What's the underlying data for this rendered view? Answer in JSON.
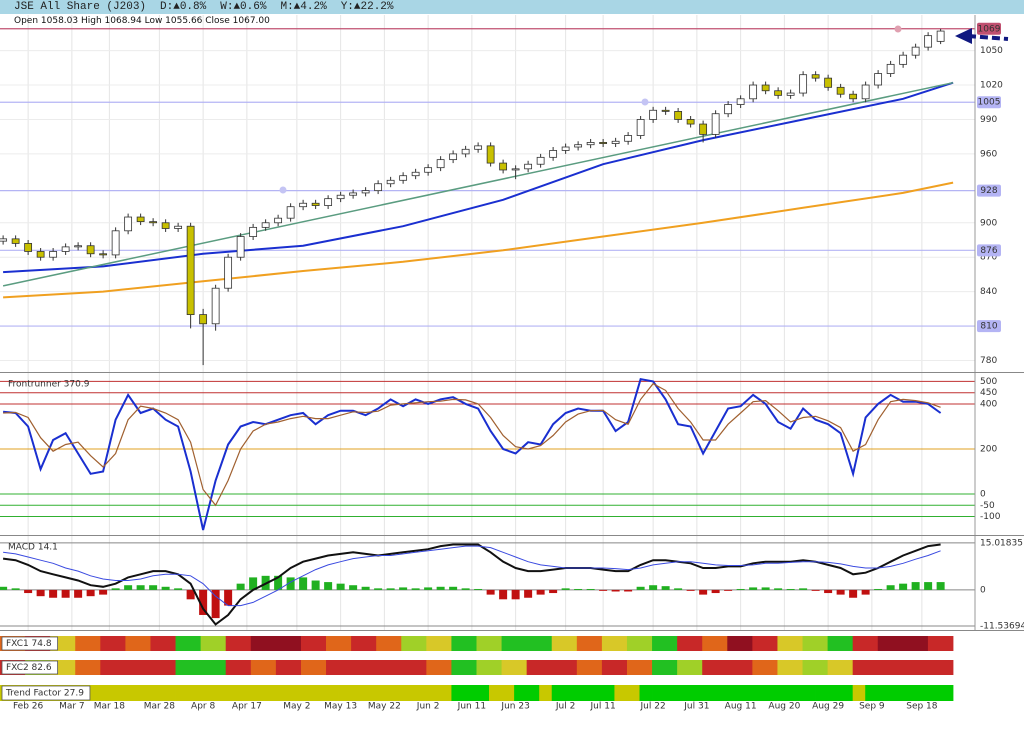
{
  "header": {
    "title": "JSE All Share (J203)",
    "changes": [
      "D:▲0.8%",
      "W:▲0.6%",
      "M:▲4.2%",
      "Y:▲22.2%"
    ],
    "ohlc": "Open 1058.03 High 1068.94 Low 1055.66 Close 1067.00"
  },
  "chart_data": [
    {
      "type": "candlestick",
      "xlim": [
        -4.5,
        151.5
      ],
      "xticks": [
        {
          "value": 0,
          "label": "Feb 26"
        },
        {
          "value": 7,
          "label": "Mar 7"
        },
        {
          "value": 13,
          "label": "Mar 18"
        },
        {
          "value": 21,
          "label": "Mar 28"
        },
        {
          "value": 28,
          "label": "Apr 8"
        },
        {
          "value": 35,
          "label": "Apr 17"
        },
        {
          "value": 43,
          "label": "May 2"
        },
        {
          "value": 50,
          "label": "May 13"
        },
        {
          "value": 57,
          "label": "May 22"
        },
        {
          "value": 64,
          "label": "Jun 2"
        },
        {
          "value": 71,
          "label": "Jun 11"
        },
        {
          "value": 78,
          "label": "Jun 23"
        },
        {
          "value": 86,
          "label": "Jul 2"
        },
        {
          "value": 92,
          "label": "Jul 11"
        },
        {
          "value": 100,
          "label": "Jul 22"
        },
        {
          "value": 107,
          "label": "Jul 31"
        },
        {
          "value": 114,
          "label": "Aug 11"
        },
        {
          "value": 121,
          "label": "Aug 20"
        },
        {
          "value": 128,
          "label": "Aug 29"
        },
        {
          "value": 135,
          "label": "Sep 9"
        },
        {
          "value": 143,
          "label": "Sep 18"
        }
      ],
      "ylim": [
        770,
        1081
      ],
      "yticks": [
        780,
        840,
        870,
        900,
        960,
        990,
        1020,
        1050
      ],
      "grid_color": "#ececec",
      "up_color": "#ffffff",
      "down_color": "#c8c000",
      "edge_color": "#333333",
      "x": [
        -4,
        -2,
        0,
        2,
        4,
        6,
        8,
        10,
        12,
        14,
        16,
        18,
        20,
        22,
        24,
        26,
        28,
        30,
        32,
        34,
        36,
        38,
        40,
        42,
        44,
        46,
        48,
        50,
        52,
        54,
        56,
        58,
        60,
        62,
        64,
        66,
        68,
        70,
        72,
        74,
        76,
        78,
        80,
        82,
        84,
        86,
        88,
        90,
        92,
        94,
        96,
        98,
        100,
        102,
        104,
        106,
        108,
        110,
        112,
        114,
        116,
        118,
        120,
        122,
        124,
        126,
        128,
        130,
        132,
        134,
        136,
        138,
        140,
        142,
        144,
        146
      ],
      "open": [
        884,
        886,
        882,
        875,
        870,
        875,
        879,
        880,
        873,
        872,
        893,
        905,
        901,
        900,
        895,
        897,
        820,
        812,
        843,
        870,
        888,
        896,
        900,
        904,
        914,
        917,
        915,
        921,
        924,
        926,
        928,
        934,
        937,
        941,
        944,
        948,
        955,
        960,
        964,
        967,
        952,
        946,
        947,
        951,
        957,
        963,
        966,
        968,
        970,
        969,
        971,
        976,
        990,
        998,
        997,
        990,
        986,
        977,
        995,
        1003,
        1008,
        1020,
        1015,
        1011,
        1013,
        1029,
        1026,
        1018,
        1012,
        1008,
        1020,
        1030,
        1038,
        1046,
        1053,
        1058.03
      ],
      "high": [
        889,
        889,
        885,
        878,
        878,
        882,
        883,
        883,
        876,
        896,
        908,
        908,
        904,
        903,
        900,
        900,
        825,
        846,
        873,
        891,
        899,
        903,
        907,
        917,
        920,
        920,
        924,
        927,
        929,
        931,
        937,
        940,
        944,
        947,
        951,
        958,
        963,
        967,
        970,
        970,
        955,
        950,
        954,
        960,
        966,
        969,
        971,
        973,
        973,
        974,
        979,
        993,
        1001,
        1001,
        1000,
        993,
        989,
        998,
        1006,
        1011,
        1023,
        1023,
        1018,
        1016,
        1032,
        1032,
        1029,
        1021,
        1015,
        1023,
        1033,
        1041,
        1049,
        1056,
        1066,
        1068.94
      ],
      "low": [
        881,
        879,
        872,
        867,
        867,
        872,
        876,
        870,
        869,
        869,
        890,
        898,
        897,
        892,
        892,
        808,
        776,
        806,
        840,
        867,
        885,
        893,
        897,
        901,
        911,
        912,
        912,
        918,
        921,
        923,
        925,
        931,
        934,
        938,
        941,
        945,
        952,
        957,
        961,
        949,
        943,
        938,
        944,
        948,
        954,
        960,
        963,
        965,
        966,
        966,
        968,
        973,
        987,
        994,
        987,
        983,
        970,
        974,
        992,
        1000,
        1005,
        1012,
        1008,
        1008,
        1010,
        1023,
        1015,
        1009,
        1005,
        1005,
        1017,
        1027,
        1035,
        1043,
        1050,
        1055.66
      ],
      "close": [
        886,
        882,
        875,
        870,
        875,
        879,
        880,
        873,
        872,
        893,
        905,
        901,
        900,
        895,
        897,
        820,
        812,
        843,
        870,
        888,
        896,
        900,
        904,
        914,
        917,
        915,
        921,
        924,
        926,
        928,
        934,
        937,
        941,
        944,
        948,
        955,
        960,
        964,
        967,
        952,
        946,
        947,
        951,
        957,
        963,
        966,
        968,
        970,
        969,
        971,
        976,
        990,
        998,
        997,
        990,
        986,
        977,
        995,
        1003,
        1008,
        1020,
        1015,
        1011,
        1013,
        1029,
        1026,
        1018,
        1012,
        1008,
        1020,
        1030,
        1038,
        1046,
        1053,
        1063,
        1067
      ],
      "lines": [
        {
          "color": "#1a2fd0",
          "width": 2,
          "x": [
            -4,
            12,
            28,
            44,
            60,
            76,
            92,
            108,
            124,
            140,
            148
          ],
          "values": [
            857,
            862,
            873,
            880,
            897,
            920,
            951,
            972,
            990,
            1008,
            1022
          ]
        },
        {
          "color": "#f0a020",
          "width": 2,
          "x": [
            -4,
            12,
            28,
            44,
            60,
            76,
            92,
            108,
            124,
            140,
            148
          ],
          "values": [
            835,
            840,
            849,
            858,
            866,
            876,
            888,
            900,
            913,
            926,
            935
          ]
        },
        {
          "color": "#5a9c80",
          "width": 1.5,
          "x": [
            -4,
            148
          ],
          "values": [
            845,
            1022
          ]
        }
      ],
      "levels": [
        {
          "value": 1069,
          "color": "#c05070",
          "text_color": "#ffffff"
        },
        {
          "value": 1005,
          "color": "#b4b4f4",
          "text_color": "#20208a"
        },
        {
          "value": 928,
          "color": "#b4b4f4",
          "text_color": "#20208a"
        },
        {
          "value": 876,
          "color": "#b4b4f4",
          "text_color": "#20208a"
        },
        {
          "value": 810,
          "color": "#b4b4f4",
          "text_color": "#20208a"
        }
      ]
    },
    {
      "type": "line",
      "title": "Frontrunner 370.9",
      "ylim": [
        -182,
        533
      ],
      "yticks": [
        500,
        450,
        400,
        200,
        0,
        -50,
        -100
      ],
      "grid_colors": [
        "#c03030",
        "#c03030",
        "#c03030",
        "#e0a020",
        "#30b030",
        "#30b030",
        "#30b030"
      ],
      "series": [
        {
          "color": "#1a2fd0",
          "width": 2,
          "values": [
            365,
            360,
            300,
            110,
            240,
            270,
            180,
            90,
            100,
            330,
            440,
            360,
            380,
            330,
            300,
            100,
            -160,
            60,
            220,
            300,
            320,
            310,
            330,
            350,
            360,
            310,
            350,
            370,
            370,
            350,
            380,
            420,
            390,
            420,
            400,
            420,
            430,
            400,
            380,
            280,
            200,
            180,
            230,
            220,
            310,
            360,
            380,
            370,
            370,
            280,
            320,
            510,
            500,
            420,
            310,
            300,
            180,
            280,
            380,
            390,
            440,
            400,
            320,
            290,
            380,
            330,
            310,
            270,
            90,
            340,
            400,
            440,
            410,
            410,
            400,
            360
          ]
        },
        {
          "color": "#a06030",
          "width": 1.2,
          "values": [
            360,
            362,
            340,
            250,
            190,
            220,
            230,
            170,
            120,
            180,
            330,
            390,
            380,
            360,
            330,
            230,
            20,
            -50,
            60,
            200,
            280,
            310,
            320,
            335,
            345,
            335,
            335,
            350,
            365,
            362,
            368,
            395,
            400,
            405,
            410,
            412,
            420,
            418,
            400,
            340,
            260,
            210,
            200,
            215,
            260,
            320,
            355,
            370,
            372,
            330,
            310,
            420,
            490,
            460,
            380,
            320,
            240,
            240,
            310,
            360,
            410,
            415,
            370,
            320,
            340,
            345,
            325,
            295,
            190,
            220,
            330,
            410,
            420,
            415,
            405,
            385
          ]
        }
      ]
    },
    {
      "type": "macd",
      "title": "MACD 14.1",
      "ylim": [
        -12.8,
        16.9
      ],
      "yticks": [
        15.01835,
        0,
        -11.53694
      ],
      "grid_color": "#888888",
      "series": [
        {
          "color": "#111111",
          "width": 2,
          "values": [
            10,
            9.5,
            8,
            6,
            5,
            4,
            3,
            1.5,
            1,
            2,
            4,
            5,
            6,
            6,
            5,
            2,
            -6,
            -11,
            -8,
            -3,
            0,
            2,
            4,
            7,
            9,
            10,
            11,
            11.5,
            12,
            11.5,
            11,
            11.5,
            12,
            12.5,
            13,
            14,
            14.5,
            14.5,
            14.5,
            12,
            9,
            7,
            6,
            6,
            6.5,
            7,
            7,
            7,
            6.5,
            6,
            6,
            8,
            9.5,
            9.5,
            9,
            8.5,
            7,
            7,
            7.5,
            7.5,
            8.5,
            9,
            9,
            9,
            9.5,
            9,
            8,
            7,
            5,
            5.5,
            7,
            9,
            11,
            12.5,
            14,
            14.5
          ]
        },
        {
          "color": "#3a4ae0",
          "width": 1,
          "values": [
            12,
            11.5,
            10.5,
            9.5,
            8.5,
            7,
            6,
            4.5,
            3.5,
            3,
            3,
            3.5,
            4.5,
            5,
            5,
            4.5,
            2,
            -2,
            -5,
            -5,
            -4,
            -2,
            0,
            2.5,
            4.5,
            6.5,
            8,
            9,
            10,
            10.5,
            11,
            11,
            11.5,
            12,
            12.5,
            13,
            13.5,
            14,
            14,
            13.5,
            12,
            10.5,
            9,
            8,
            7.5,
            7,
            7,
            7,
            7,
            6.8,
            6.5,
            7,
            8,
            8.5,
            9,
            9,
            8.5,
            8,
            7.8,
            7.8,
            8,
            8.5,
            8.5,
            8.8,
            9,
            9,
            8.8,
            8.3,
            7.5,
            7,
            7,
            7.5,
            8.5,
            9.8,
            11,
            12.5
          ]
        }
      ],
      "histogram": {
        "up_color": "#20b020",
        "down_color": "#c01010",
        "values": [
          1,
          0.5,
          -1,
          -2,
          -2.5,
          -2.5,
          -2.5,
          -2,
          -1.5,
          0.5,
          1.5,
          1.5,
          1.5,
          1,
          0.5,
          -3,
          -8,
          -9,
          -5,
          2,
          4,
          4.5,
          4.5,
          4,
          4,
          3,
          2.5,
          2,
          1.5,
          1,
          0.5,
          0.5,
          0.8,
          0.5,
          0.8,
          1,
          1,
          0.5,
          0.3,
          -1.5,
          -3,
          -3,
          -2.5,
          -1.5,
          -1,
          0.5,
          0.3,
          0.3,
          -0.3,
          -0.5,
          -0.5,
          1,
          1.5,
          1.2,
          0.5,
          -0.3,
          -1.5,
          -1,
          -0.3,
          0.3,
          0.8,
          0.8,
          0.5,
          0.3,
          0.5,
          -0.3,
          -1,
          -1.5,
          -2.5,
          -1.5,
          0.3,
          1.5,
          2,
          2.5,
          2.5,
          2.5
        ]
      }
    },
    {
      "type": "heatstrip",
      "title": "FXC1 74.8",
      "colors": [
        "#e0661a",
        "#c82828",
        "#d8c828",
        "#e0661a",
        "#c82828",
        "#e0661a",
        "#c82828",
        "#22c022",
        "#a0d028",
        "#c82828",
        "#901020",
        "#901020",
        "#c82828",
        "#e0661a",
        "#c82828",
        "#e0661a",
        "#a0d028",
        "#d8c828",
        "#22c022",
        "#a0d028",
        "#22c022",
        "#22c022",
        "#d8c828",
        "#e0661a",
        "#d8c828",
        "#a0d028",
        "#22c022",
        "#c82828",
        "#e0661a",
        "#901020",
        "#c82828",
        "#d8c828",
        "#a0d028",
        "#22c022",
        "#c82828",
        "#901020",
        "#901020",
        "#c82828"
      ]
    },
    {
      "type": "heatstrip",
      "title": "FXC2 82.6",
      "colors": [
        "#c82828",
        "#a0d028",
        "#d8c828",
        "#e0661a",
        "#c82828",
        "#c82828",
        "#c82828",
        "#22c022",
        "#22c022",
        "#c82828",
        "#e0661a",
        "#c82828",
        "#e0661a",
        "#c82828",
        "#c82828",
        "#c82828",
        "#c82828",
        "#e0661a",
        "#22c022",
        "#a0d028",
        "#d8c828",
        "#c82828",
        "#c82828",
        "#e0661a",
        "#c82828",
        "#e0661a",
        "#22c022",
        "#a0d028",
        "#c82828",
        "#c82828",
        "#e0661a",
        "#d8c828",
        "#a0d028",
        "#d8c828",
        "#c82828",
        "#c82828",
        "#c82828",
        "#c82828"
      ]
    },
    {
      "type": "heatstrip",
      "title": "Trend Factor 27.9",
      "colors": [
        "#c8c800",
        "#c8c800",
        "#c8c800",
        "#c8c800",
        "#c8c800",
        "#c8c800",
        "#c8c800",
        "#c8c800",
        "#c8c800",
        "#c8c800",
        "#c8c800",
        "#c8c800",
        "#c8c800",
        "#c8c800",
        "#c8c800",
        "#c8c800",
        "#c8c800",
        "#c8c800",
        "#c8c800",
        "#c8c800",
        "#c8c800",
        "#c8c800",
        "#c8c800",
        "#c8c800",
        "#c8c800",
        "#c8c800",
        "#c8c800",
        "#c8c800",
        "#c8c800",
        "#c8c800",
        "#c8c800",
        "#c8c800",
        "#c8c800",
        "#c8c800",
        "#c8c800",
        "#c8c800",
        "#00cc00",
        "#00cc00",
        "#00cc00",
        "#c8c800",
        "#c8c800",
        "#00cc00",
        "#00cc00",
        "#c8c800",
        "#00cc00",
        "#00cc00",
        "#00cc00",
        "#00cc00",
        "#00cc00",
        "#c8c800",
        "#c8c800",
        "#00cc00",
        "#00cc00",
        "#00cc00",
        "#00cc00",
        "#00cc00",
        "#00cc00",
        "#00cc00",
        "#00cc00",
        "#00cc00",
        "#00cc00",
        "#00cc00",
        "#00cc00",
        "#00cc00",
        "#00cc00",
        "#00cc00",
        "#00cc00",
        "#00cc00",
        "#c8c800",
        "#00cc00",
        "#00cc00",
        "#00cc00",
        "#00cc00",
        "#00cc00",
        "#00cc00",
        "#00cc00"
      ]
    }
  ]
}
